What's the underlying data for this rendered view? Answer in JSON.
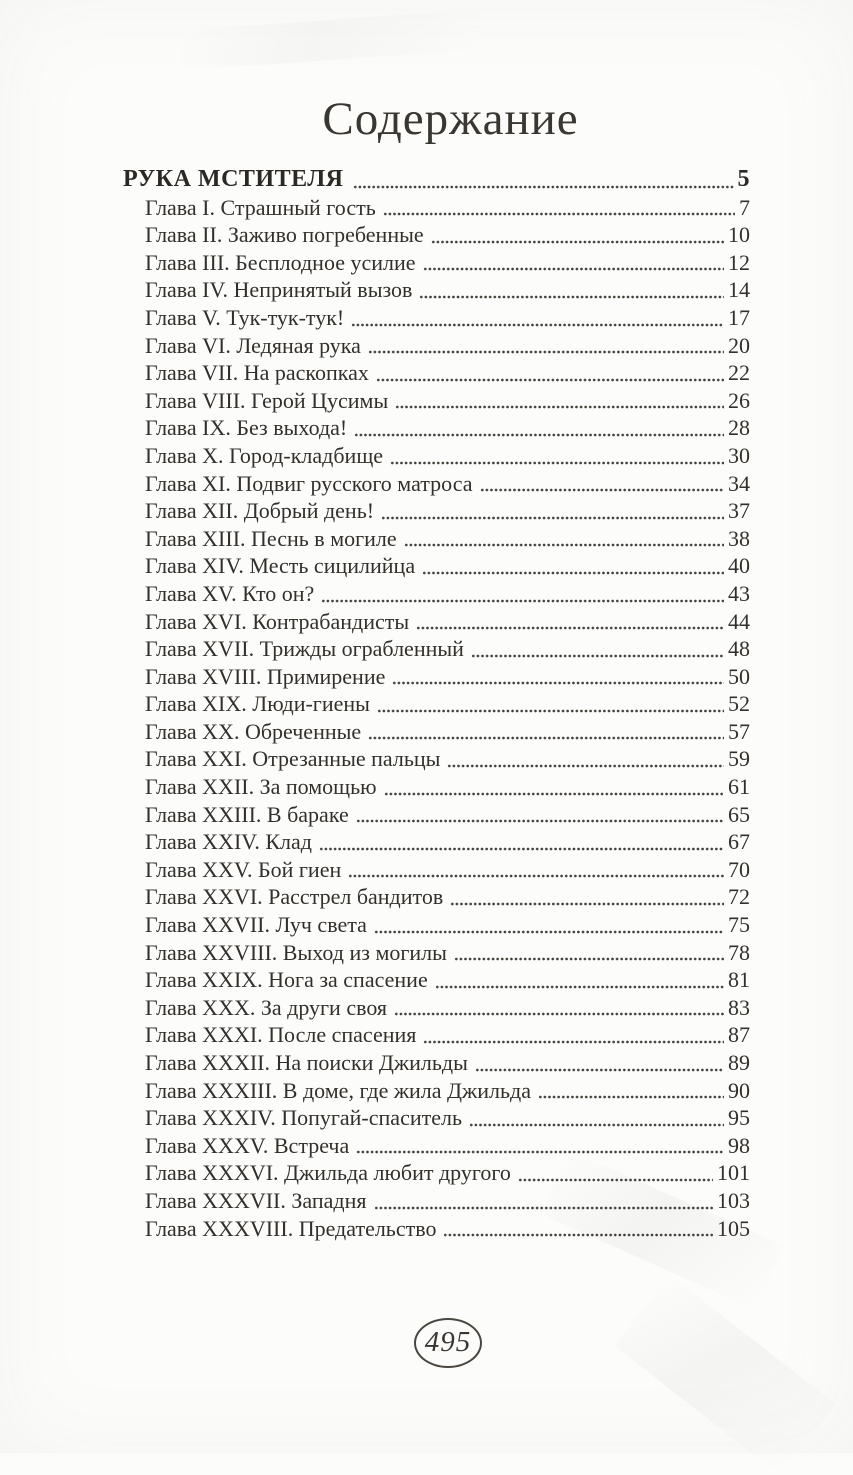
{
  "page": {
    "title": "Содержание",
    "folio": "495",
    "paper_color": "#fcfcfb",
    "ink_color": "#33302b"
  },
  "toc": {
    "book_title_entry": {
      "label": "РУКА МСТИТЕЛЯ",
      "page": "5"
    },
    "entries": [
      {
        "label": "Глава I. Страшный гость",
        "page": "7"
      },
      {
        "label": "Глава II. Заживо погребенные",
        "page": "10"
      },
      {
        "label": "Глава III. Бесплодное усилие",
        "page": "12"
      },
      {
        "label": "Глава IV. Непринятый вызов",
        "page": "14"
      },
      {
        "label": "Глава V. Тук-тук-тук!",
        "page": "17"
      },
      {
        "label": "Глава VI. Ледяная рука",
        "page": "20"
      },
      {
        "label": "Глава VII. На раскопках",
        "page": "22"
      },
      {
        "label": "Глава VIII. Герой Цусимы",
        "page": "26"
      },
      {
        "label": "Глава IX. Без выхода!",
        "page": "28"
      },
      {
        "label": "Глава X. Город-кладбище",
        "page": "30"
      },
      {
        "label": "Глава XI. Подвиг русского матроса",
        "page": "34"
      },
      {
        "label": "Глава XII. Добрый день!",
        "page": "37"
      },
      {
        "label": "Глава XIII. Песнь в могиле",
        "page": "38"
      },
      {
        "label": "Глава XIV. Месть сицилийца",
        "page": "40"
      },
      {
        "label": "Глава XV. Кто он?",
        "page": "43"
      },
      {
        "label": "Глава XVI. Контрабандисты",
        "page": "44"
      },
      {
        "label": "Глава XVII. Трижды ограбленный",
        "page": "48"
      },
      {
        "label": "Глава XVIII. Примирение",
        "page": "50"
      },
      {
        "label": "Глава XIX. Люди-гиены",
        "page": "52"
      },
      {
        "label": "Глава XX. Обреченные",
        "page": "57"
      },
      {
        "label": "Глава XXI. Отрезанные пальцы",
        "page": "59"
      },
      {
        "label": "Глава XXII. За помощью",
        "page": "61"
      },
      {
        "label": "Глава XXIII. В бараке",
        "page": "65"
      },
      {
        "label": "Глава XXIV. Клад",
        "page": "67"
      },
      {
        "label": "Глава XXV. Бой гиен",
        "page": "70"
      },
      {
        "label": "Глава XXVI. Расстрел бандитов",
        "page": "72"
      },
      {
        "label": "Глава XXVII. Луч света",
        "page": "75"
      },
      {
        "label": "Глава XXVIII. Выход из могилы",
        "page": "78"
      },
      {
        "label": "Глава XXIX. Нога за спасение",
        "page": "81"
      },
      {
        "label": "Глава XXX. За други своя",
        "page": "83"
      },
      {
        "label": "Глава XXXI. После спасения",
        "page": "87"
      },
      {
        "label": "Глава XXXII. На поиски Джильды",
        "page": "89"
      },
      {
        "label": "Глава XXXIII. В доме, где жила Джильда",
        "page": "90"
      },
      {
        "label": "Глава XXXIV. Попугай-спаситель",
        "page": "95"
      },
      {
        "label": "Глава XXXV. Встреча",
        "page": "98"
      },
      {
        "label": "Глава XXXVI. Джильда любит другого",
        "page": "101"
      },
      {
        "label": "Глава XXXVII. Западня",
        "page": "103"
      },
      {
        "label": "Глава XXXVIII. Предательство",
        "page": "105"
      }
    ]
  }
}
